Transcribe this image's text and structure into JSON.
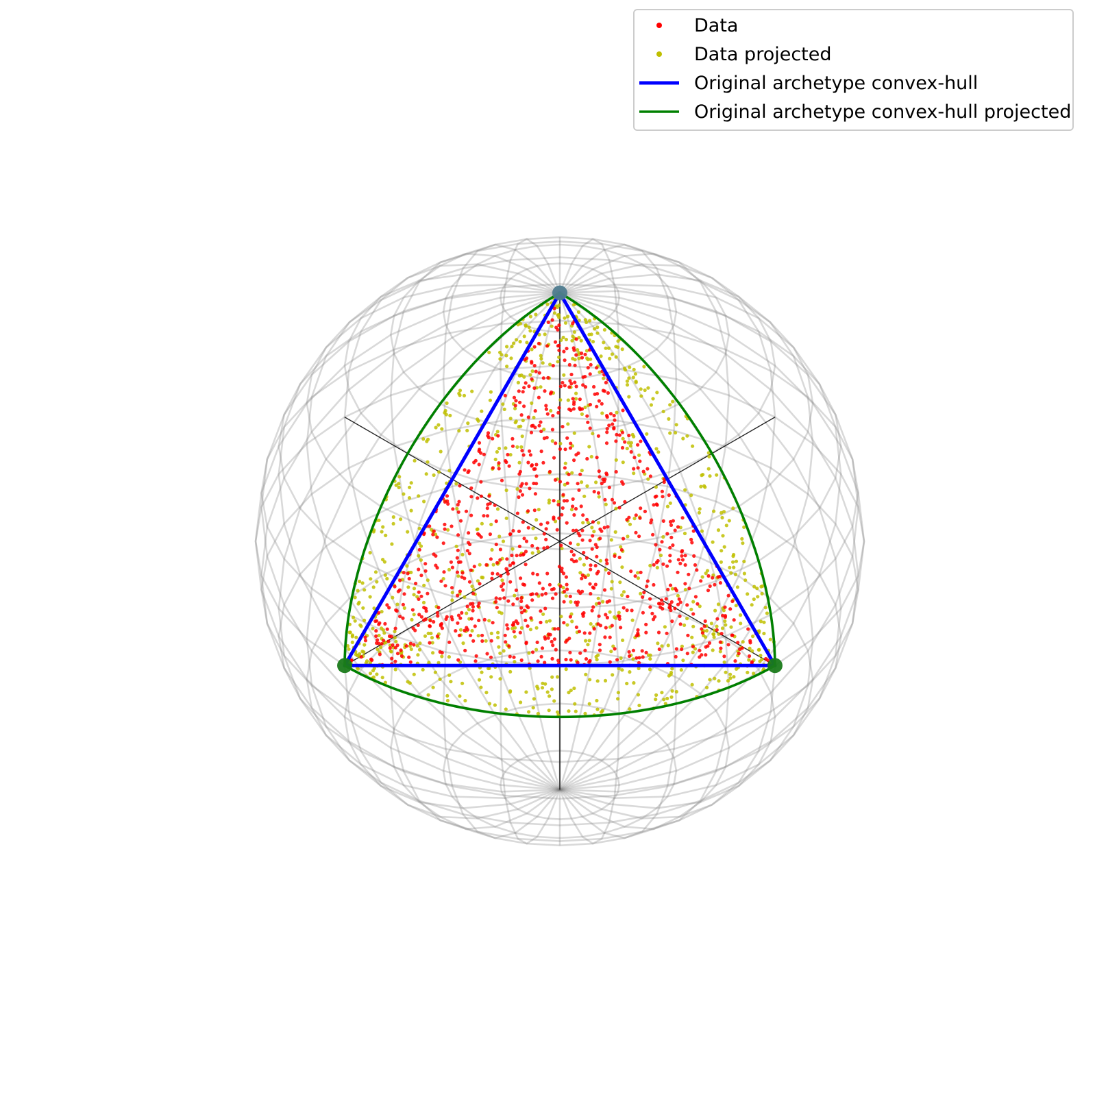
{
  "chart_data": {
    "type": "scatter",
    "title": "",
    "xlabel": "",
    "ylabel": "",
    "axes_visible": false,
    "grid": false,
    "view": "3D orthographic, looking down the (1,1,1) direction",
    "sphere": {
      "radius": 1,
      "wireframe": true,
      "wireframe_color": "#808080"
    },
    "legend": {
      "placement": "top-right",
      "entries": [
        {
          "label": "Data",
          "marker": "dot",
          "color": "#ff0000"
        },
        {
          "label": "Data projected",
          "marker": "dot",
          "color": "#bfbf00"
        },
        {
          "label": "Original archetype convex-hull",
          "marker": "line",
          "color": "#0000ff"
        },
        {
          "label": "Original archetype convex-hull projected",
          "marker": "line",
          "color": "#008000"
        }
      ]
    },
    "archetypes": [
      [
        1,
        0,
        0
      ],
      [
        0,
        1,
        0
      ],
      [
        0,
        0,
        1
      ]
    ],
    "series": [
      {
        "name": "Data",
        "color": "#ff0000",
        "n_points": 900,
        "distribution": "uniform on the simplex spanned by the archetypes"
      },
      {
        "name": "Data projected",
        "color": "#bfbf00",
        "n_points": 900,
        "distribution": "Data normalized to the unit sphere"
      },
      {
        "name": "Original archetype convex-hull",
        "color": "#0000ff",
        "vertices": [
          [
            1,
            0,
            0
          ],
          [
            0,
            1,
            0
          ],
          [
            0,
            0,
            1
          ],
          [
            1,
            0,
            0
          ]
        ]
      },
      {
        "name": "Original archetype convex-hull projected",
        "color": "#008000",
        "vertices": "great-circle arcs between the archetypes"
      }
    ]
  }
}
